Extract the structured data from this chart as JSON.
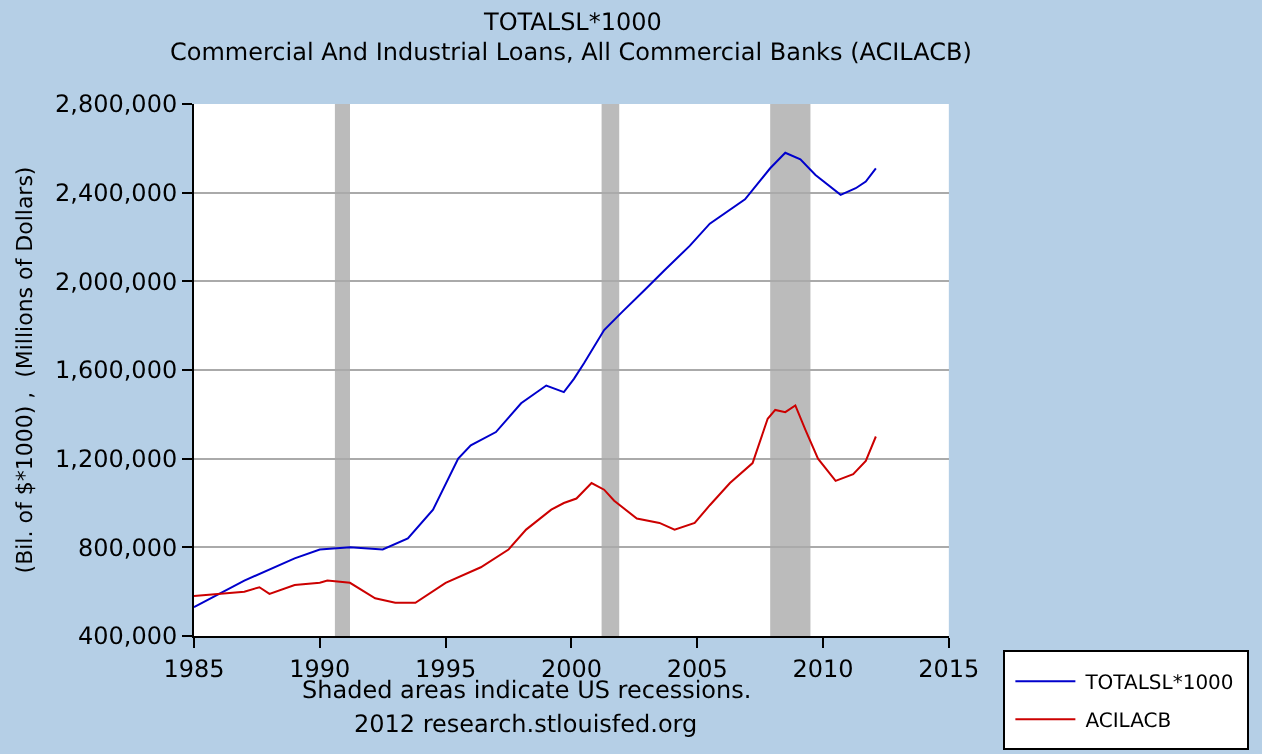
{
  "chart_data": {
    "type": "line",
    "title": "TOTALSL*1000",
    "subtitle": "Commercial And Industrial Loans, All Commercial Banks (ACILACB)",
    "ylabel": "(Bil. of $*1000) ,  (Millions of Dollars)",
    "annotations": [
      "Shaded areas indicate US recessions.",
      "2012 research.stlouisfed.org"
    ],
    "series": [
      {
        "name": "TOTALSL*1000",
        "color": "#0000cc",
        "x": [
          1985.0,
          1987.0,
          1989.0,
          1990.0,
          1991.2,
          1992.5,
          1993.5,
          1994.5,
          1995.5,
          1996.0,
          1997.0,
          1998.0,
          1999.0,
          1999.7,
          2000.1,
          2000.5,
          2001.3,
          2002.0,
          2002.9,
          2003.7,
          2004.7,
          2005.5,
          2006.9,
          2007.9,
          2008.5,
          2009.1,
          2009.7,
          2010.7,
          2011.3,
          2011.7,
          2012.1
        ],
        "values": [
          530000,
          650000,
          750000,
          790000,
          800000,
          790000,
          840000,
          970000,
          1200000,
          1260000,
          1320000,
          1450000,
          1530000,
          1500000,
          1560000,
          1630000,
          1780000,
          1860000,
          1960000,
          2050000,
          2160000,
          2260000,
          2370000,
          2510000,
          2580000,
          2550000,
          2480000,
          2390000,
          2420000,
          2450000,
          2510000
        ]
      },
      {
        "name": "ACILACB",
        "color": "#cc0000",
        "x": [
          1985.0,
          1987.0,
          1987.6,
          1988.0,
          1989.0,
          1990.0,
          1990.3,
          1991.2,
          1992.2,
          1993.0,
          1993.8,
          1995.0,
          1996.4,
          1997.5,
          1998.2,
          1999.2,
          1999.7,
          2000.2,
          2000.8,
          2001.3,
          2001.7,
          2002.6,
          2003.5,
          2004.1,
          2004.9,
          2005.5,
          2006.3,
          2007.2,
          2007.8,
          2008.1,
          2008.5,
          2008.9,
          2009.3,
          2009.8,
          2010.5,
          2011.2,
          2011.7,
          2012.1
        ],
        "values": [
          580000,
          600000,
          620000,
          590000,
          630000,
          640000,
          650000,
          640000,
          570000,
          550000,
          550000,
          640000,
          710000,
          790000,
          880000,
          970000,
          1000000,
          1020000,
          1090000,
          1060000,
          1010000,
          930000,
          910000,
          880000,
          910000,
          990000,
          1090000,
          1180000,
          1380000,
          1420000,
          1410000,
          1440000,
          1330000,
          1200000,
          1100000,
          1130000,
          1190000,
          1300000
        ]
      }
    ],
    "xlim": [
      1985,
      2015
    ],
    "xticks": [
      1985,
      1990,
      1995,
      2000,
      2005,
      2010,
      2015
    ],
    "ylim": [
      400000,
      2800000
    ],
    "yticks": [
      {
        "value": 400000,
        "label": "400,000"
      },
      {
        "value": 800000,
        "label": "800,000"
      },
      {
        "value": 1200000,
        "label": "1,200,000"
      },
      {
        "value": 1600000,
        "label": "1,600,000"
      },
      {
        "value": 2000000,
        "label": "2,000,000"
      },
      {
        "value": 2400000,
        "label": "2,400,000"
      },
      {
        "value": 2800000,
        "label": "2,800,000"
      }
    ],
    "bands": [
      {
        "axis": "x",
        "from": 1990.6,
        "to": 1991.2,
        "color": "#bbbbbb"
      },
      {
        "axis": "x",
        "from": 2001.2,
        "to": 2001.9,
        "color": "#bbbbbb"
      },
      {
        "axis": "x",
        "from": 2007.9,
        "to": 2009.5,
        "color": "#bbbbbb"
      }
    ],
    "grid": "y",
    "legend": "bottom right",
    "marker": "none",
    "line_style": "solid"
  }
}
